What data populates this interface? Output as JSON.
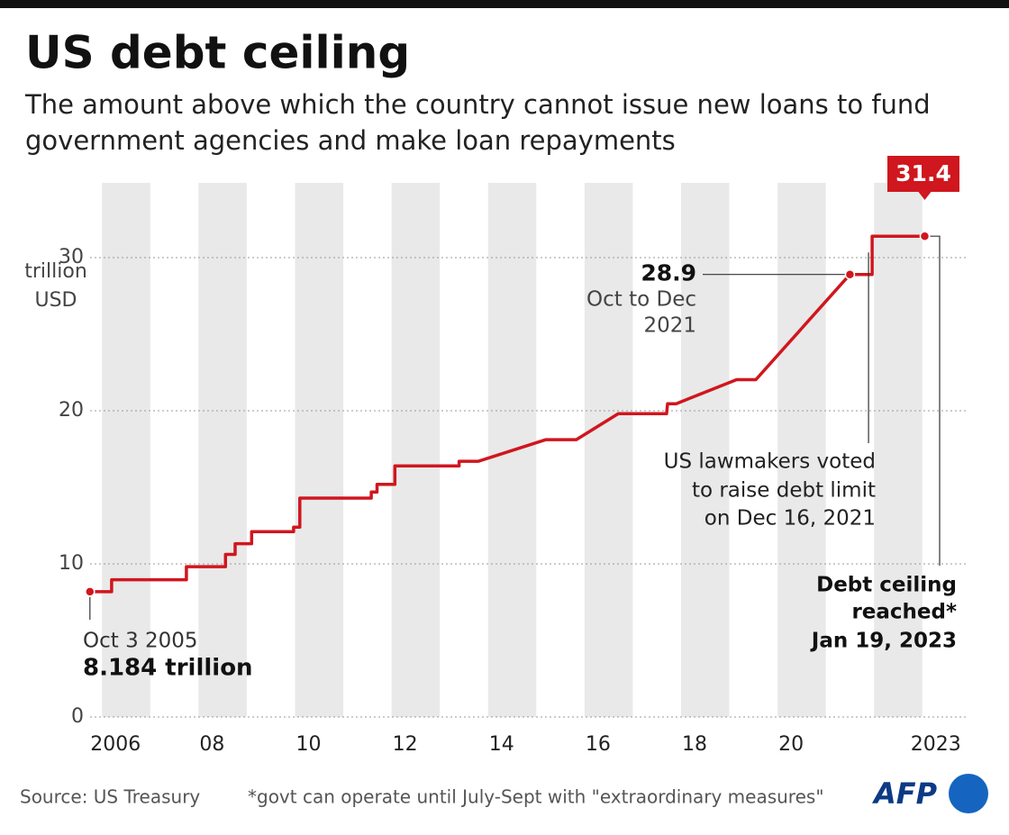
{
  "chart_data": {
    "type": "line",
    "title": "US debt ceiling",
    "subtitle": [
      "The amount above which the country cannot issue new loans to fund",
      "government agencies and make loan repayments"
    ],
    "y_axis_label": [
      "trillion",
      "USD"
    ],
    "x": [
      2005.75,
      2005.9,
      2006.2,
      2006.2,
      2007.75,
      2007.75,
      2008.56,
      2008.56,
      2008.76,
      2008.76,
      2009.1,
      2009.1,
      2009.97,
      2009.97,
      2010.1,
      2010.1,
      2011.58,
      2011.58,
      2011.7,
      2011.7,
      2012.07,
      2012.07,
      2013.4,
      2013.4,
      2013.8,
      2015.2,
      2015.83,
      2016.7,
      2017.7,
      2017.72,
      2017.9,
      2019.15,
      2019.55,
      2021.5,
      2021.75,
      2021.96,
      2021.96,
      2023.05
    ],
    "series": [
      {
        "name": "Debt ceiling",
        "color": "#d0161e",
        "values": [
          8.184,
          8.184,
          8.184,
          8.965,
          8.965,
          9.815,
          9.815,
          10.615,
          10.615,
          11.315,
          11.315,
          12.104,
          12.104,
          12.394,
          12.394,
          14.294,
          14.294,
          14.694,
          14.694,
          15.194,
          15.194,
          16.394,
          16.394,
          16.699,
          16.699,
          18.113,
          18.113,
          19.808,
          19.808,
          20.456,
          20.456,
          22.03,
          22.03,
          28.9,
          28.9,
          28.9,
          31.4,
          31.4
        ],
        "value_labels": [
          "8.184 trillion",
          null,
          null,
          null,
          null,
          null,
          null,
          null,
          null,
          null,
          null,
          null,
          null,
          null,
          null,
          null,
          null,
          null,
          null,
          null,
          null,
          null,
          null,
          null,
          null,
          null,
          null,
          null,
          null,
          null,
          null,
          null,
          null,
          null,
          null,
          null,
          null,
          null
        ]
      }
    ],
    "annotations": {
      "start": "Oct 3 2005",
      "oct_dec": [
        "Oct to Dec",
        "2021"
      ],
      "vote": [
        "US lawmakers voted",
        "to raise debt limit",
        "on Dec 16, 2021"
      ],
      "reached": [
        "Debt ceiling",
        "reached*",
        "Jan 19, 2023"
      ]
    },
    "xlim": [
      2005.66,
      2023.9
    ],
    "xticks": [
      2006,
      {
        "value": 2008,
        "label": "08"
      },
      {
        "value": 2010,
        "label": "10"
      },
      {
        "value": 2012,
        "label": "12"
      },
      {
        "value": 2014,
        "label": "14"
      },
      {
        "value": 2016,
        "label": "16"
      },
      {
        "value": 2018,
        "label": "18"
      },
      {
        "value": 2020,
        "label": "20"
      },
      2023
    ],
    "ylim": [
      0,
      34
    ],
    "yticks": [
      0,
      10,
      20,
      30
    ],
    "grid": true,
    "source": "Source: US Treasury",
    "note": "*govt can operate until July-Sept with \"extraordinary measures\"",
    "logo": "AFP"
  }
}
